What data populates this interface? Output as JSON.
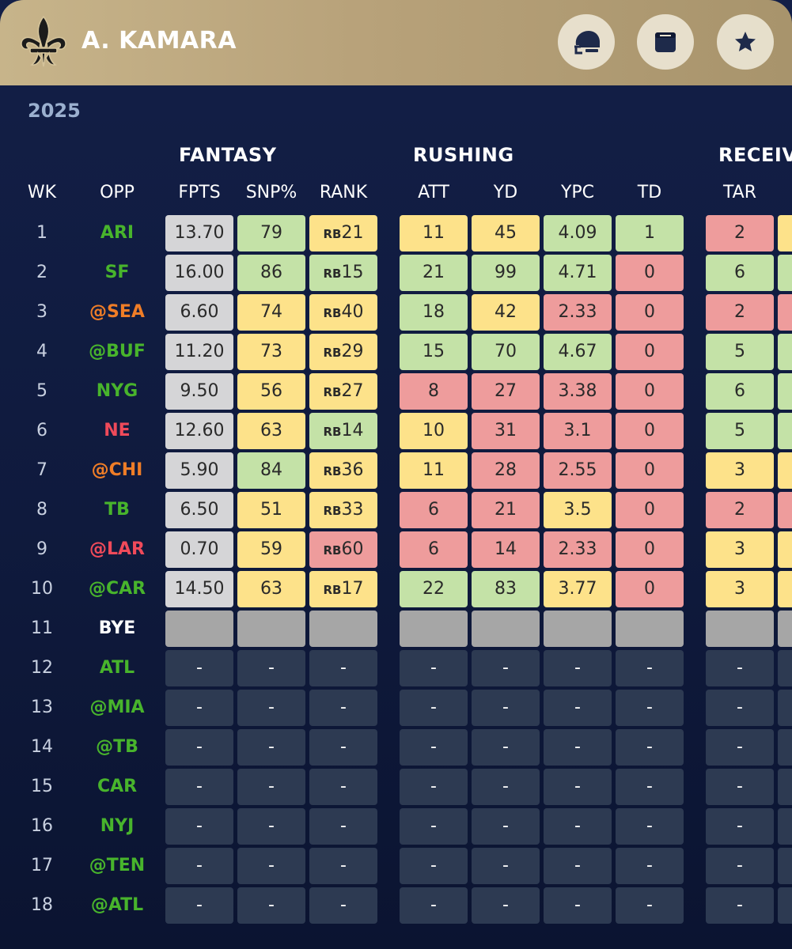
{
  "player": {
    "name": "A. KAMARA"
  },
  "season": "2025",
  "colors": {
    "green": "#c4e2a7",
    "yellow": "#fde28a",
    "red": "#ee9c9c",
    "gray": "#d5d5d7",
    "bye": "#a6a6a6",
    "empty": "#2d3a52",
    "opp_green": "#48b42c",
    "opp_orange": "#ef7d27",
    "opp_red": "#ef4a5a",
    "opp_white": "#ffffff"
  },
  "header_buttons": [
    {
      "name": "helmet-icon"
    },
    {
      "name": "calendar-icon"
    },
    {
      "name": "star-icon"
    }
  ],
  "groups": {
    "fantasy": "FANTASY",
    "rushing": "RUSHING",
    "receiving": "RECEIVI"
  },
  "columns": {
    "wk": "WK",
    "opp": "OPP",
    "fpts": "FPTS",
    "snp": "SNP%",
    "rank": "RANK",
    "att": "ATT",
    "yd": "YD",
    "ypc": "YPC",
    "td": "TD",
    "tar": "TAR"
  },
  "rows": [
    {
      "wk": "1",
      "opp": "ARI",
      "opp_color": "#48b42c",
      "fpts": {
        "v": "13.70",
        "c": "gray"
      },
      "snp": {
        "v": "79",
        "c": "green"
      },
      "rank": {
        "p": "RB",
        "n": "21",
        "c": "yellow"
      },
      "att": {
        "v": "11",
        "c": "yellow"
      },
      "yd": {
        "v": "45",
        "c": "yellow"
      },
      "ypc": {
        "v": "4.09",
        "c": "green"
      },
      "td": {
        "v": "1",
        "c": "green"
      },
      "tar": {
        "v": "2",
        "c": "red"
      },
      "next_c": "yellow"
    },
    {
      "wk": "2",
      "opp": "SF",
      "opp_color": "#48b42c",
      "fpts": {
        "v": "16.00",
        "c": "gray"
      },
      "snp": {
        "v": "86",
        "c": "green"
      },
      "rank": {
        "p": "RB",
        "n": "15",
        "c": "green"
      },
      "att": {
        "v": "21",
        "c": "green"
      },
      "yd": {
        "v": "99",
        "c": "green"
      },
      "ypc": {
        "v": "4.71",
        "c": "green"
      },
      "td": {
        "v": "0",
        "c": "red"
      },
      "tar": {
        "v": "6",
        "c": "green"
      },
      "next_c": "green"
    },
    {
      "wk": "3",
      "opp": "@SEA",
      "opp_color": "#ef7d27",
      "fpts": {
        "v": "6.60",
        "c": "gray"
      },
      "snp": {
        "v": "74",
        "c": "yellow"
      },
      "rank": {
        "p": "RB",
        "n": "40",
        "c": "yellow"
      },
      "att": {
        "v": "18",
        "c": "green"
      },
      "yd": {
        "v": "42",
        "c": "yellow"
      },
      "ypc": {
        "v": "2.33",
        "c": "red"
      },
      "td": {
        "v": "0",
        "c": "red"
      },
      "tar": {
        "v": "2",
        "c": "red"
      },
      "next_c": "red"
    },
    {
      "wk": "4",
      "opp": "@BUF",
      "opp_color": "#48b42c",
      "fpts": {
        "v": "11.20",
        "c": "gray"
      },
      "snp": {
        "v": "73",
        "c": "yellow"
      },
      "rank": {
        "p": "RB",
        "n": "29",
        "c": "yellow"
      },
      "att": {
        "v": "15",
        "c": "green"
      },
      "yd": {
        "v": "70",
        "c": "green"
      },
      "ypc": {
        "v": "4.67",
        "c": "green"
      },
      "td": {
        "v": "0",
        "c": "red"
      },
      "tar": {
        "v": "5",
        "c": "green"
      },
      "next_c": "green"
    },
    {
      "wk": "5",
      "opp": "NYG",
      "opp_color": "#48b42c",
      "fpts": {
        "v": "9.50",
        "c": "gray"
      },
      "snp": {
        "v": "56",
        "c": "yellow"
      },
      "rank": {
        "p": "RB",
        "n": "27",
        "c": "yellow"
      },
      "att": {
        "v": "8",
        "c": "red"
      },
      "yd": {
        "v": "27",
        "c": "red"
      },
      "ypc": {
        "v": "3.38",
        "c": "red"
      },
      "td": {
        "v": "0",
        "c": "red"
      },
      "tar": {
        "v": "6",
        "c": "green"
      },
      "next_c": "green"
    },
    {
      "wk": "6",
      "opp": "NE",
      "opp_color": "#ef4a5a",
      "fpts": {
        "v": "12.60",
        "c": "gray"
      },
      "snp": {
        "v": "63",
        "c": "yellow"
      },
      "rank": {
        "p": "RB",
        "n": "14",
        "c": "green"
      },
      "att": {
        "v": "10",
        "c": "yellow"
      },
      "yd": {
        "v": "31",
        "c": "red"
      },
      "ypc": {
        "v": "3.1",
        "c": "red"
      },
      "td": {
        "v": "0",
        "c": "red"
      },
      "tar": {
        "v": "5",
        "c": "green"
      },
      "next_c": "green"
    },
    {
      "wk": "7",
      "opp": "@CHI",
      "opp_color": "#ef7d27",
      "fpts": {
        "v": "5.90",
        "c": "gray"
      },
      "snp": {
        "v": "84",
        "c": "green"
      },
      "rank": {
        "p": "RB",
        "n": "36",
        "c": "yellow"
      },
      "att": {
        "v": "11",
        "c": "yellow"
      },
      "yd": {
        "v": "28",
        "c": "red"
      },
      "ypc": {
        "v": "2.55",
        "c": "red"
      },
      "td": {
        "v": "0",
        "c": "red"
      },
      "tar": {
        "v": "3",
        "c": "yellow"
      },
      "next_c": "yellow"
    },
    {
      "wk": "8",
      "opp": "TB",
      "opp_color": "#48b42c",
      "fpts": {
        "v": "6.50",
        "c": "gray"
      },
      "snp": {
        "v": "51",
        "c": "yellow"
      },
      "rank": {
        "p": "RB",
        "n": "33",
        "c": "yellow"
      },
      "att": {
        "v": "6",
        "c": "red"
      },
      "yd": {
        "v": "21",
        "c": "red"
      },
      "ypc": {
        "v": "3.5",
        "c": "yellow"
      },
      "td": {
        "v": "0",
        "c": "red"
      },
      "tar": {
        "v": "2",
        "c": "red"
      },
      "next_c": "red"
    },
    {
      "wk": "9",
      "opp": "@LAR",
      "opp_color": "#ef4a5a",
      "fpts": {
        "v": "0.70",
        "c": "gray"
      },
      "snp": {
        "v": "59",
        "c": "yellow"
      },
      "rank": {
        "p": "RB",
        "n": "60",
        "c": "red"
      },
      "att": {
        "v": "6",
        "c": "red"
      },
      "yd": {
        "v": "14",
        "c": "red"
      },
      "ypc": {
        "v": "2.33",
        "c": "red"
      },
      "td": {
        "v": "0",
        "c": "red"
      },
      "tar": {
        "v": "3",
        "c": "yellow"
      },
      "next_c": "yellow"
    },
    {
      "wk": "10",
      "opp": "@CAR",
      "opp_color": "#48b42c",
      "fpts": {
        "v": "14.50",
        "c": "gray"
      },
      "snp": {
        "v": "63",
        "c": "yellow"
      },
      "rank": {
        "p": "RB",
        "n": "17",
        "c": "yellow"
      },
      "att": {
        "v": "22",
        "c": "green"
      },
      "yd": {
        "v": "83",
        "c": "green"
      },
      "ypc": {
        "v": "3.77",
        "c": "yellow"
      },
      "td": {
        "v": "0",
        "c": "red"
      },
      "tar": {
        "v": "3",
        "c": "yellow"
      },
      "next_c": "yellow"
    },
    {
      "wk": "11",
      "opp": "BYE",
      "opp_color": "#ffffff",
      "bye": true
    },
    {
      "wk": "12",
      "opp": "ATL",
      "opp_color": "#48b42c",
      "future": true
    },
    {
      "wk": "13",
      "opp": "@MIA",
      "opp_color": "#48b42c",
      "future": true
    },
    {
      "wk": "14",
      "opp": "@TB",
      "opp_color": "#48b42c",
      "future": true
    },
    {
      "wk": "15",
      "opp": "CAR",
      "opp_color": "#48b42c",
      "future": true
    },
    {
      "wk": "16",
      "opp": "NYJ",
      "opp_color": "#48b42c",
      "future": true
    },
    {
      "wk": "17",
      "opp": "@TEN",
      "opp_color": "#48b42c",
      "future": true
    },
    {
      "wk": "18",
      "opp": "@ATL",
      "opp_color": "#48b42c",
      "future": true
    }
  ],
  "placeholder": "-"
}
